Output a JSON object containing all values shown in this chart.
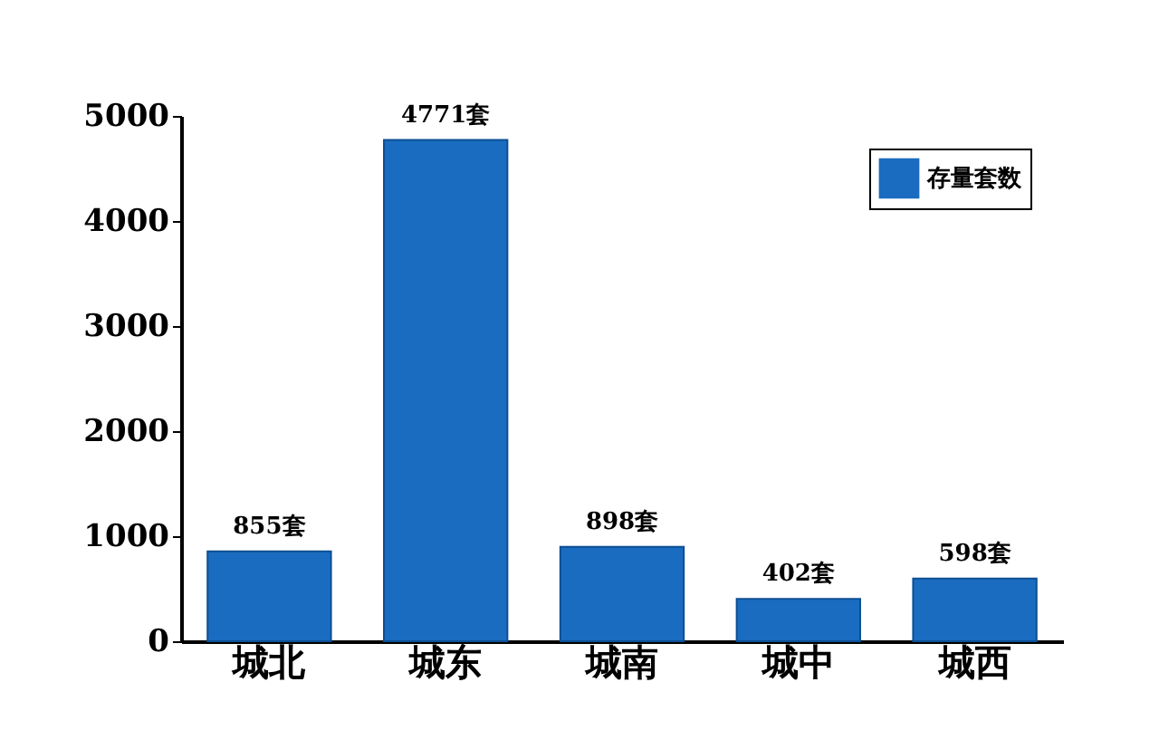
{
  "chart_data": {
    "type": "bar",
    "categories": [
      "城北",
      "城东",
      "城南",
      "城中",
      "城西"
    ],
    "series": [
      {
        "name": "存量套数",
        "color": "#1a6cc0",
        "values": [
          855,
          4771,
          898,
          402,
          598
        ],
        "value_labels": [
          "855套",
          "4771套",
          "898套",
          "402套",
          "598套"
        ]
      }
    ],
    "ylim": [
      0,
      5000
    ],
    "yticks": [
      0,
      1000,
      2000,
      3000,
      4000,
      5000
    ],
    "grid": false,
    "legend": "top right"
  }
}
